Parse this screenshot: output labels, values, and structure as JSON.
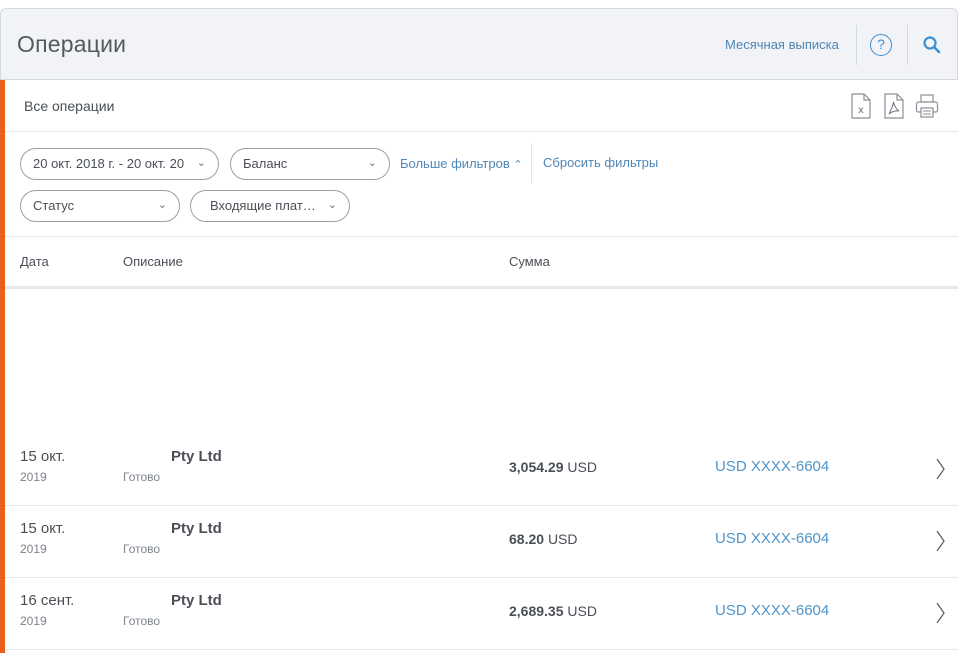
{
  "header": {
    "title": "Операции",
    "monthly_statement": "Месячная выписка",
    "help_symbol": "?"
  },
  "section": {
    "title": "Все операции",
    "exports": [
      "excel-export-icon",
      "pdf-export-icon",
      "print-icon"
    ]
  },
  "filters": {
    "date_range": "20 окт. 2018 г. - 20 окт. 20",
    "balance": "Баланс",
    "status": "Статус",
    "direction": "Входящие плат…",
    "more_filters": "Больше фильтров",
    "reset_filters": "Сбросить фильтры"
  },
  "table": {
    "columns": [
      "Дата",
      "Описание",
      "Сумма"
    ],
    "rows": [
      {
        "date": "15 окт.",
        "year": "2019",
        "description": "Pty Ltd",
        "status": "Готово",
        "amount": "3,054.29",
        "currency": "USD",
        "account": "USD XXXX-6604"
      },
      {
        "date": "15 окт.",
        "year": "2019",
        "description": "Pty Ltd",
        "status": "Готово",
        "amount": "68.20",
        "currency": "USD",
        "account": "USD XXXX-6604"
      },
      {
        "date": "16 сент.",
        "year": "2019",
        "description": "Pty Ltd",
        "status": "Готово",
        "amount": "2,689.35",
        "currency": "USD",
        "account": "USD XXXX-6604"
      }
    ]
  },
  "colors": {
    "accent": "#e8601c",
    "link": "#4f86b5",
    "account_link": "#4f96c9",
    "help": "#3a8fd6"
  }
}
